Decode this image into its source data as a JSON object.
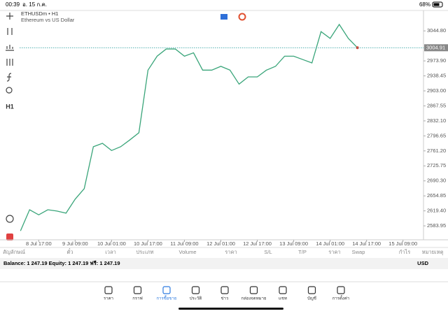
{
  "status_bar": {
    "time": "00:39",
    "date": "อ. 15 ก.ค.",
    "battery": "68%"
  },
  "left_toolbar": {
    "timeframe": "H1"
  },
  "chart_data": {
    "type": "line",
    "symbol": "ETHUSDm • H1",
    "subtitle": "Ethereum vs US Dollar",
    "x": [
      "8 Jul 09:00",
      "8 Jul 13:00",
      "8 Jul 17:00",
      "8 Jul 21:00",
      "9 Jul 01:00",
      "9 Jul 05:00",
      "9 Jul 09:00",
      "9 Jul 13:00",
      "9 Jul 17:00",
      "9 Jul 21:00",
      "10 Jul 01:00",
      "10 Jul 05:00",
      "10 Jul 09:00",
      "10 Jul 13:00",
      "10 Jul 17:00",
      "10 Jul 21:00",
      "11 Jul 01:00",
      "11 Jul 05:00",
      "11 Jul 09:00",
      "11 Jul 13:00",
      "11 Jul 17:00",
      "11 Jul 21:00",
      "12 Jul 01:00",
      "12 Jul 05:00",
      "12 Jul 09:00",
      "12 Jul 13:00",
      "12 Jul 17:00",
      "12 Jul 21:00",
      "13 Jul 01:00",
      "13 Jul 05:00",
      "13 Jul 09:00",
      "13 Jul 13:00",
      "13 Jul 17:00",
      "13 Jul 21:00",
      "14 Jul 01:00",
      "14 Jul 05:00",
      "14 Jul 09:00",
      "14 Jul 13:00"
    ],
    "series": [
      {
        "name": "ETHUSDm",
        "color": "#3aa57a",
        "values": [
          2572,
          2622,
          2610,
          2622,
          2619,
          2614,
          2647,
          2672,
          2771,
          2779,
          2762,
          2771,
          2787,
          2804,
          2952,
          2985,
          3002,
          3002,
          2985,
          2993,
          2952,
          2952,
          2961,
          2952,
          2919,
          2936,
          2936,
          2952,
          2961,
          2985,
          2985,
          2977,
          2969,
          3043,
          3027,
          3060,
          3027,
          3005
        ]
      }
    ],
    "current_price": 3004.91,
    "xlim": [
      "8 Jul 00:00",
      "15 Jul 18:00"
    ],
    "xticks": [
      "8 Jul 17:00",
      "9 Jul 09:00",
      "10 Jul 01:00",
      "10 Jul 17:00",
      "11 Jul 09:00",
      "12 Jul 01:00",
      "12 Jul 17:00",
      "13 Jul 09:00",
      "14 Jul 01:00",
      "14 Jul 17:00",
      "15 Jul 09:00"
    ],
    "ylim": [
      2551,
      3093
    ],
    "yticks": [
      {
        "value": 3044.8,
        "label": "3044.80"
      },
      {
        "value": 2973.9,
        "label": "2973.90"
      },
      {
        "value": 2938.45,
        "label": "2938.45"
      },
      {
        "value": 2903.0,
        "label": "2903.00"
      },
      {
        "value": 2867.55,
        "label": "2867.55"
      },
      {
        "value": 2832.1,
        "label": "2832.10"
      },
      {
        "value": 2796.65,
        "label": "2796.65"
      },
      {
        "value": 2761.2,
        "label": "2761.20"
      },
      {
        "value": 2725.75,
        "label": "2725.75"
      },
      {
        "value": 2690.3,
        "label": "2690.30"
      },
      {
        "value": 2654.85,
        "label": "2654.85"
      },
      {
        "value": 2619.4,
        "label": "2619.40"
      },
      {
        "value": 2583.95,
        "label": "2583.95"
      }
    ]
  },
  "table": {
    "headers": [
      "สัญลักษณ์",
      "ตั๋ว",
      "เวลา",
      "ประเภท",
      "Volume",
      "ราคา",
      "S/L",
      "T/P",
      "ราคา",
      "Swap",
      "กำไร",
      "หมายเหตุ"
    ]
  },
  "balance": {
    "text": "Balance: 1 247.19 Equity: 1 247.19 ฟรี: 1 247.19",
    "currency": "USD"
  },
  "tabs": [
    "ราคา",
    "กราฟ",
    "การซื้อขาย",
    "ประวัติ",
    "ข่าว",
    "กล่องจดหมาย",
    "แชท",
    "บัญชี",
    "การตั้งค่า"
  ]
}
